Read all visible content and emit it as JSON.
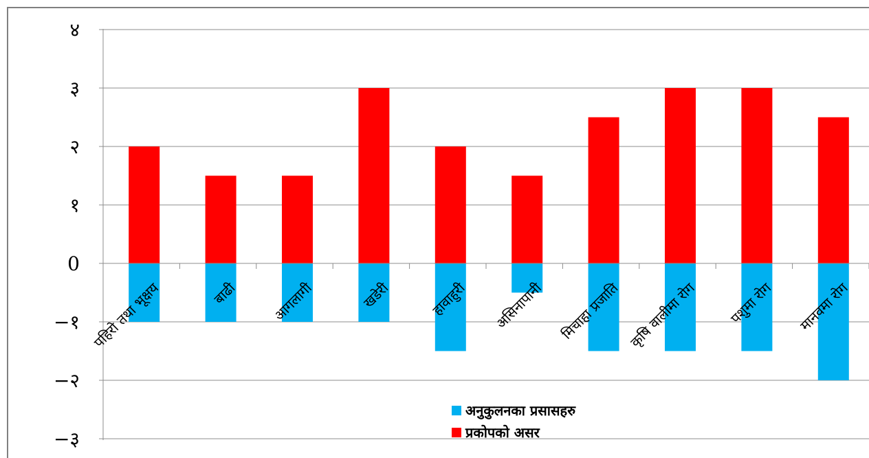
{
  "chart_data": {
    "type": "bar",
    "categories": [
      "पहिरो तथा भूक्षय",
      "बाढी",
      "आगलागी",
      "खडेरी",
      "हावाहुरी",
      "असिनापानी",
      "मिचाहा प्रजाति",
      "कृषि वालीमा रोग",
      "पशुमा रोग",
      "मानवमा रोग"
    ],
    "series": [
      {
        "name": "अनुकुलनका प्रसासहरु",
        "color": "#00b0f0",
        "values": [
          -1,
          -1,
          -1,
          -1,
          -1.5,
          -0.5,
          -1.5,
          -1.5,
          -1.5,
          -2
        ]
      },
      {
        "name": "प्रकोपको असर",
        "color": "#ff0000",
        "values": [
          2,
          1.5,
          1.5,
          3,
          2,
          1.5,
          2.5,
          3,
          3,
          2.5
        ]
      }
    ],
    "ylim": [
      -3,
      4
    ],
    "yticks": [
      4,
      3,
      2,
      1,
      0,
      -1,
      -2,
      -3
    ],
    "ytick_labels": [
      "४",
      "३",
      "२",
      "१",
      "0",
      "−१",
      "−२",
      "−३"
    ],
    "grid": true,
    "legend": "bottom-center"
  }
}
